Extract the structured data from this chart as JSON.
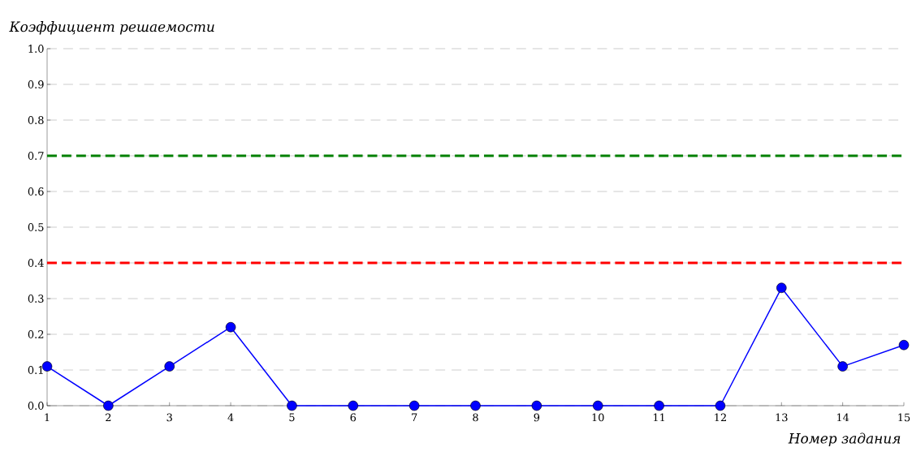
{
  "chart_data": {
    "type": "line",
    "xlabel": "Номер задания",
    "ylabel": "Коэффициент решаемости",
    "x": [
      1,
      2,
      3,
      4,
      5,
      6,
      7,
      8,
      9,
      10,
      11,
      12,
      13,
      14,
      15
    ],
    "series": [
      {
        "color": "#0000ff",
        "values": [
          0.11,
          0,
          0.11,
          0.22,
          0,
          0,
          0,
          0,
          0,
          0,
          0,
          0,
          0.33,
          0.11,
          0.17
        ]
      }
    ],
    "xlim": [
      1,
      15
    ],
    "ylim": [
      0,
      1
    ],
    "xticks": [
      1,
      2,
      3,
      4,
      5,
      6,
      7,
      8,
      9,
      10,
      11,
      12,
      13,
      14,
      15
    ],
    "yticks": [
      {
        "value": 0,
        "label": "0.0"
      },
      {
        "value": 0.1,
        "label": "0.1"
      },
      {
        "value": 0.2,
        "label": "0.2"
      },
      {
        "value": 0.3,
        "label": "0.3"
      },
      {
        "value": 0.4,
        "label": "0.4"
      },
      {
        "value": 0.5,
        "label": "0.5"
      },
      {
        "value": 0.6,
        "label": "0.6"
      },
      {
        "value": 0.7,
        "label": "0.7"
      },
      {
        "value": 0.8,
        "label": "0.8"
      },
      {
        "value": 0.9,
        "label": "0.9"
      },
      {
        "value": 1,
        "label": "1.0"
      }
    ],
    "ref_lines": [
      {
        "axis": "y",
        "value": 0.7,
        "color": "#008000",
        "line_style": "dashed"
      },
      {
        "axis": "y",
        "value": 0.4,
        "color": "#ff0000",
        "line_style": "dashed"
      }
    ],
    "grid": "y",
    "marker": "circle",
    "line_style": "solid"
  }
}
